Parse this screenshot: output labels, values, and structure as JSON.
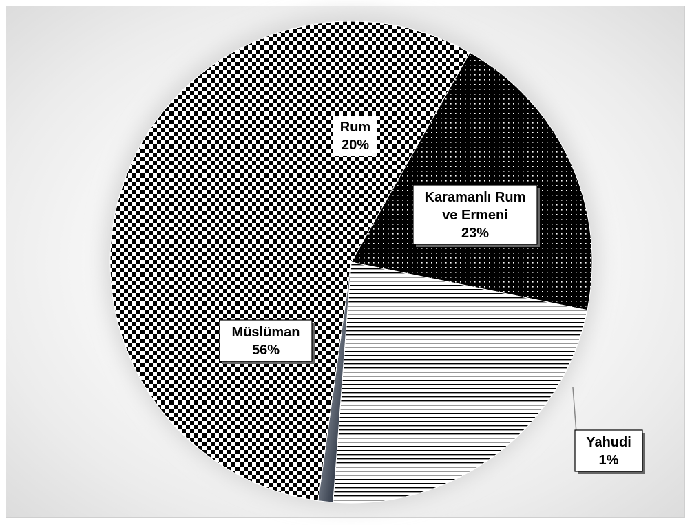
{
  "chart_data": {
    "type": "pie",
    "title": "",
    "slices": [
      {
        "label": "Rum",
        "value": 20,
        "value_label": "20%",
        "pattern": "dots-on-black",
        "label_box": false
      },
      {
        "label": "Karamanlı Rum ve Ermeni",
        "label_lines": [
          "Karamanlı Rum",
          "ve Ermeni"
        ],
        "value": 23,
        "value_label": "23%",
        "pattern": "horizontal-lines",
        "label_box": true
      },
      {
        "label": "Yahudi",
        "value": 1,
        "value_label": "1%",
        "pattern": "dark-gradient",
        "label_box": true,
        "leader_line": true
      },
      {
        "label": "Müslüman",
        "value": 56,
        "value_label": "56%",
        "pattern": "checkerboard",
        "label_box": true
      }
    ],
    "legend": "none",
    "colors": {
      "dark": "#000000",
      "light": "#ffffff",
      "yahudi": "#3a4250"
    }
  }
}
